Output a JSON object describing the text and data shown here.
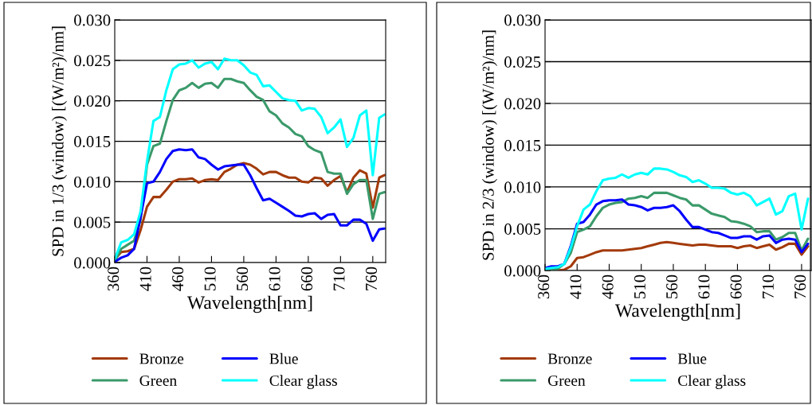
{
  "chart_data": [
    {
      "type": "line",
      "xlabel": "Wavelength[nm]",
      "ylabel": "SPD in 1/3 (window) [(W/m²)/nm]",
      "xlim": [
        360,
        780
      ],
      "xticks": [
        360,
        410,
        460,
        510,
        560,
        610,
        660,
        710,
        760
      ],
      "ylim": [
        0,
        0.03
      ],
      "yticks": [
        {
          "value": 0,
          "label": "0.000"
        },
        {
          "value": 0.005,
          "label": "0.005"
        },
        {
          "value": 0.01,
          "label": "0.010"
        },
        {
          "value": 0.015,
          "label": "0.015"
        },
        {
          "value": 0.02,
          "label": "0.020"
        },
        {
          "value": 0.025,
          "label": "0.025"
        },
        {
          "value": 0.03,
          "label": "0.030"
        }
      ],
      "grid": "y",
      "legend": "bottom",
      "marker": "none",
      "line_style": "solid",
      "x": [
        360,
        370,
        380,
        390,
        400,
        410,
        420,
        430,
        440,
        450,
        460,
        470,
        480,
        490,
        500,
        510,
        520,
        530,
        540,
        550,
        560,
        570,
        580,
        590,
        600,
        610,
        620,
        630,
        640,
        650,
        660,
        670,
        680,
        690,
        700,
        710,
        720,
        730,
        740,
        750,
        760,
        770,
        778
      ],
      "series": [
        {
          "name": "Bronze",
          "color": "#a33a0a",
          "values": [
            0.0004,
            0.0013,
            0.0014,
            0.0017,
            0.004,
            0.0069,
            0.0081,
            0.0081,
            0.009,
            0.01,
            0.0103,
            0.0103,
            0.0104,
            0.0099,
            0.0102,
            0.0103,
            0.0102,
            0.0112,
            0.0116,
            0.0121,
            0.0123,
            0.0121,
            0.0116,
            0.0109,
            0.0112,
            0.0112,
            0.0108,
            0.0105,
            0.0105,
            0.01,
            0.0099,
            0.0105,
            0.0104,
            0.0095,
            0.0102,
            0.0107,
            0.0087,
            0.0105,
            0.0114,
            0.011,
            0.0068,
            0.0105,
            0.0108
          ]
        },
        {
          "name": "Green",
          "color": "#3a9a6a",
          "values": [
            0.0002,
            0.0017,
            0.0022,
            0.0027,
            0.0053,
            0.0121,
            0.0144,
            0.0147,
            0.0175,
            0.0201,
            0.0213,
            0.0216,
            0.0222,
            0.0216,
            0.0221,
            0.0222,
            0.0216,
            0.0227,
            0.0227,
            0.0224,
            0.0222,
            0.0213,
            0.0205,
            0.0201,
            0.0187,
            0.0182,
            0.0172,
            0.0167,
            0.0159,
            0.0156,
            0.0144,
            0.0139,
            0.0136,
            0.0112,
            0.011,
            0.011,
            0.0085,
            0.0097,
            0.0102,
            0.0102,
            0.0054,
            0.0085,
            0.0087
          ]
        },
        {
          "name": "Blue",
          "color": "#0000ff",
          "values": [
            0.0001,
            0.0006,
            0.0009,
            0.0017,
            0.0056,
            0.0098,
            0.01,
            0.0112,
            0.0128,
            0.0138,
            0.014,
            0.0139,
            0.014,
            0.013,
            0.0128,
            0.0121,
            0.0115,
            0.0119,
            0.012,
            0.0121,
            0.0121,
            0.0108,
            0.0092,
            0.0077,
            0.0079,
            0.0074,
            0.0069,
            0.0064,
            0.0058,
            0.0057,
            0.006,
            0.0061,
            0.0054,
            0.0059,
            0.006,
            0.0046,
            0.0046,
            0.0053,
            0.0053,
            0.0048,
            0.0027,
            0.0041,
            0.0042
          ]
        },
        {
          "name": "Clear glass",
          "color": "#00ffff",
          "values": [
            0.0004,
            0.0025,
            0.0028,
            0.0035,
            0.0063,
            0.0125,
            0.0175,
            0.018,
            0.0213,
            0.0239,
            0.0245,
            0.0246,
            0.025,
            0.0241,
            0.0246,
            0.0248,
            0.0239,
            0.0252,
            0.025,
            0.025,
            0.0244,
            0.0235,
            0.0232,
            0.0218,
            0.0219,
            0.0211,
            0.0203,
            0.0201,
            0.02,
            0.0188,
            0.0191,
            0.019,
            0.018,
            0.016,
            0.0167,
            0.0177,
            0.0143,
            0.0154,
            0.0182,
            0.0188,
            0.0108,
            0.0179,
            0.0183
          ]
        }
      ]
    },
    {
      "type": "line",
      "xlabel": "Wavelength[nm]",
      "ylabel": "SPD in 2/3 (window) [(W/m²)/nm]",
      "xlim": [
        360,
        775
      ],
      "xticks": [
        360,
        410,
        460,
        510,
        560,
        610,
        660,
        710,
        760
      ],
      "ylim": [
        0,
        0.03
      ],
      "yticks": [
        {
          "value": 0,
          "label": "0.000"
        },
        {
          "value": 0.005,
          "label": "0.005"
        },
        {
          "value": 0.01,
          "label": "0.010"
        },
        {
          "value": 0.015,
          "label": "0.015"
        },
        {
          "value": 0.02,
          "label": "0.020"
        },
        {
          "value": 0.025,
          "label": "0.025"
        },
        {
          "value": 0.03,
          "label": "0.030"
        }
      ],
      "grid": "y",
      "legend": "bottom",
      "marker": "none",
      "line_style": "solid",
      "x": [
        360,
        370,
        380,
        390,
        400,
        410,
        420,
        430,
        440,
        450,
        460,
        470,
        480,
        490,
        500,
        510,
        520,
        530,
        540,
        550,
        560,
        570,
        580,
        590,
        600,
        610,
        620,
        630,
        640,
        650,
        660,
        670,
        680,
        690,
        700,
        710,
        720,
        730,
        740,
        750,
        760,
        770
      ],
      "series": [
        {
          "name": "Bronze",
          "color": "#a33a0a",
          "values": [
            0.0,
            0.0,
            0.0,
            0.0001,
            0.0005,
            0.0015,
            0.0016,
            0.0019,
            0.0022,
            0.0024,
            0.0024,
            0.0024,
            0.0024,
            0.0025,
            0.0026,
            0.0027,
            0.0029,
            0.0031,
            0.0033,
            0.0034,
            0.0033,
            0.0032,
            0.0031,
            0.003,
            0.0031,
            0.0031,
            0.003,
            0.0029,
            0.0029,
            0.0029,
            0.0027,
            0.0029,
            0.003,
            0.0027,
            0.0029,
            0.0031,
            0.0025,
            0.0028,
            0.0032,
            0.0032,
            0.0019,
            0.0029
          ]
        },
        {
          "name": "Green",
          "color": "#3a9a6a",
          "values": [
            0.0001,
            0.0001,
            0.0002,
            0.0008,
            0.0021,
            0.0046,
            0.0049,
            0.0053,
            0.0065,
            0.0075,
            0.0079,
            0.0081,
            0.0082,
            0.0086,
            0.0087,
            0.0089,
            0.0087,
            0.0093,
            0.0093,
            0.0093,
            0.009,
            0.0087,
            0.0085,
            0.0078,
            0.0078,
            0.0073,
            0.0068,
            0.0066,
            0.0064,
            0.0059,
            0.0058,
            0.0056,
            0.0053,
            0.0046,
            0.0047,
            0.0047,
            0.0037,
            0.004,
            0.0045,
            0.0045,
            0.0024,
            0.0038
          ]
        },
        {
          "name": "Blue",
          "color": "#0000ff",
          "values": [
            0.0003,
            0.0005,
            0.0005,
            0.0008,
            0.0029,
            0.0056,
            0.0058,
            0.0067,
            0.0079,
            0.0083,
            0.0084,
            0.0084,
            0.0085,
            0.0079,
            0.0078,
            0.0076,
            0.0072,
            0.0075,
            0.0075,
            0.0076,
            0.0078,
            0.0071,
            0.0061,
            0.0052,
            0.0052,
            0.0049,
            0.0046,
            0.0045,
            0.0042,
            0.0039,
            0.0039,
            0.0041,
            0.0041,
            0.0037,
            0.0041,
            0.0042,
            0.0033,
            0.0037,
            0.0038,
            0.0037,
            0.0022,
            0.0032
          ]
        },
        {
          "name": "Clear glass",
          "color": "#00ffff",
          "values": [
            0.0002,
            0.0003,
            0.0004,
            0.0008,
            0.0027,
            0.0053,
            0.0073,
            0.0079,
            0.0095,
            0.0108,
            0.011,
            0.0111,
            0.0115,
            0.0111,
            0.0115,
            0.0117,
            0.0115,
            0.0122,
            0.0122,
            0.0121,
            0.0118,
            0.0114,
            0.0112,
            0.0106,
            0.0108,
            0.0104,
            0.0099,
            0.0099,
            0.0098,
            0.0093,
            0.0091,
            0.0093,
            0.0089,
            0.0078,
            0.0082,
            0.0086,
            0.0067,
            0.0071,
            0.0089,
            0.0092,
            0.0049,
            0.0086
          ]
        }
      ]
    }
  ]
}
